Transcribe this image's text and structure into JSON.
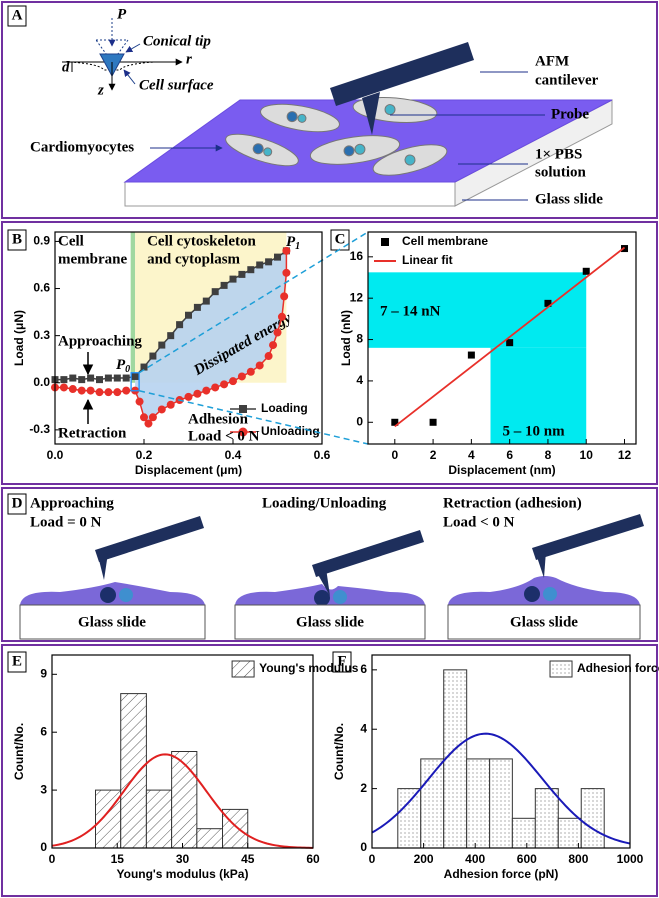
{
  "panels": {
    "labels": [
      "A",
      "B",
      "C",
      "D",
      "E",
      "F"
    ],
    "A": {
      "tip_load": "P",
      "tip_label": "Conical tip",
      "depth": "d",
      "r_axis": "r",
      "z_axis": "z",
      "surface": "Cell surface",
      "cantilever": [
        "AFM",
        "cantilever"
      ],
      "probe": "Probe",
      "cells": "Cardiomyocytes",
      "solution": [
        "1× PBS",
        "solution"
      ],
      "slide": "Glass slide"
    },
    "D": {
      "steps": [
        {
          "title": "Approaching",
          "note": "Load = 0 N",
          "slide": "Glass slide"
        },
        {
          "title": "Loading/Unloading",
          "slide": "Glass slide"
        },
        {
          "title": "Retraction (adhesion)",
          "note": "Load < 0 N",
          "slide": "Glass slide"
        }
      ]
    }
  },
  "chart_data": [
    {
      "type": "line",
      "xlabel": "Displacement (μm)",
      "ylabel": "Load (μN)",
      "xlim": [
        0,
        0.6
      ],
      "ylim": [
        -0.39,
        0.96
      ],
      "xticks": [
        {
          "value": 0,
          "label": "0.0"
        },
        0.2,
        0.4,
        0.6
      ],
      "yticks": [
        -0.3,
        {
          "value": 0,
          "label": "0.0"
        },
        0.3,
        0.6,
        0.9
      ],
      "regions": [
        {
          "label": [
            "Cell",
            "membrane"
          ],
          "color": "#72c472",
          "fill": "#8fd18f",
          "x": [
            0.17,
            0.18
          ]
        },
        {
          "label": [
            "Cell cytoskeleton",
            "and cytoplasm"
          ],
          "color": "#a0522d",
          "fill": "#fbf3c2",
          "x": [
            0.18,
            0.52
          ]
        }
      ],
      "area_label": "Dissipated energy",
      "annotations": [
        "Approaching",
        "Retraction",
        "Adhesion",
        "Load < 0 N"
      ],
      "markers": [
        {
          "base": "P",
          "sub": "0"
        },
        {
          "base": "P",
          "sub": "1"
        }
      ],
      "series": [
        {
          "name": "Loading",
          "color": "#3f3f3f",
          "marker": "square",
          "x": [
            0,
            0.02,
            0.04,
            0.06,
            0.08,
            0.1,
            0.12,
            0.14,
            0.16,
            0.18,
            0.2,
            0.22,
            0.24,
            0.26,
            0.28,
            0.3,
            0.32,
            0.34,
            0.36,
            0.38,
            0.4,
            0.42,
            0.44,
            0.46,
            0.48,
            0.5,
            0.52
          ],
          "values": [
            0.02,
            0.02,
            0.03,
            0.02,
            0.03,
            0.02,
            0.03,
            0.03,
            0.03,
            0.04,
            0.1,
            0.17,
            0.24,
            0.3,
            0.37,
            0.43,
            0.48,
            0.52,
            0.58,
            0.62,
            0.66,
            0.69,
            0.72,
            0.75,
            0.77,
            0.8,
            0.84
          ]
        },
        {
          "name": "Unloading",
          "color": "#e8302a",
          "marker": "circle",
          "x": [
            0.52,
            0.52,
            0.515,
            0.51,
            0.5,
            0.49,
            0.48,
            0.46,
            0.44,
            0.42,
            0.4,
            0.38,
            0.36,
            0.34,
            0.32,
            0.3,
            0.28,
            0.26,
            0.24,
            0.22,
            0.21,
            0.2,
            0.19,
            0.18,
            0.16,
            0.14,
            0.12,
            0.1,
            0.08,
            0.06,
            0.04,
            0.02,
            0
          ],
          "values": [
            0.84,
            0.7,
            0.55,
            0.42,
            0.32,
            0.24,
            0.17,
            0.11,
            0.07,
            0.04,
            0.01,
            -0.01,
            -0.03,
            -0.05,
            -0.07,
            -0.09,
            -0.11,
            -0.14,
            -0.17,
            -0.22,
            -0.26,
            -0.22,
            -0.12,
            -0.05,
            -0.05,
            -0.06,
            -0.06,
            -0.06,
            -0.05,
            -0.05,
            -0.04,
            -0.03,
            -0.03
          ]
        }
      ]
    },
    {
      "type": "scatter",
      "xlabel": "Displacement (nm)",
      "ylabel": "Load (nN)",
      "xlim": [
        -1.4,
        12.6
      ],
      "ylim": [
        -2.1,
        18.4
      ],
      "xticks": [
        0,
        2,
        4,
        6,
        8,
        10,
        12
      ],
      "yticks": [
        0,
        4,
        8,
        12,
        16
      ],
      "bands": {
        "color": "#00eaf0",
        "x": [
          5,
          10
        ],
        "y": [
          7.2,
          14.5
        ],
        "labels": [
          "7 – 14 nN",
          "5 – 10 nm"
        ]
      },
      "series": [
        {
          "name": "Cell membrane",
          "color": "#000000",
          "marker": "square",
          "x": [
            0,
            2,
            4,
            6,
            8,
            10,
            12
          ],
          "values": [
            0,
            0,
            6.5,
            7.7,
            11.5,
            14.6,
            16.8
          ]
        },
        {
          "name": "Linear fit",
          "color": "#e8302a",
          "marker": "line",
          "x": [
            0,
            12
          ],
          "values": [
            -0.4,
            16.9
          ]
        }
      ]
    },
    {
      "type": "histogram",
      "name": "Young's modulus",
      "xlabel": "Young's modulus (kPa)",
      "ylabel": "Count/No.",
      "xlim": [
        0,
        60
      ],
      "ylim": [
        0,
        10
      ],
      "xticks": [
        0,
        15,
        30,
        45,
        60
      ],
      "yticks": [
        0,
        3,
        6,
        9
      ],
      "bins": [
        10,
        15.8,
        21.7,
        27.5,
        33.3,
        39.2,
        45
      ],
      "values": [
        3,
        8,
        3,
        5,
        1,
        2
      ],
      "hatch": "diagonal",
      "fit": {
        "color": "#e02020",
        "mean": 26,
        "sd": 9.5,
        "peak": 4.85
      }
    },
    {
      "type": "histogram",
      "name": "Adhesion force",
      "xlabel": "Adhesion force (pN)",
      "ylabel": "Count/No.",
      "xlim": [
        0,
        1000
      ],
      "ylim": [
        0,
        6.5
      ],
      "xticks": [
        0,
        200,
        400,
        600,
        800,
        1000
      ],
      "yticks": [
        0,
        2,
        4,
        6
      ],
      "bins": [
        100,
        189,
        278,
        367,
        456,
        544,
        633,
        722,
        811,
        900
      ],
      "values": [
        2,
        3,
        6,
        3,
        3,
        1,
        2,
        1,
        2
      ],
      "hatch": "dots",
      "fit": {
        "color": "#1a1ab8",
        "mean": 440,
        "sd": 220,
        "peak": 3.85
      }
    }
  ]
}
